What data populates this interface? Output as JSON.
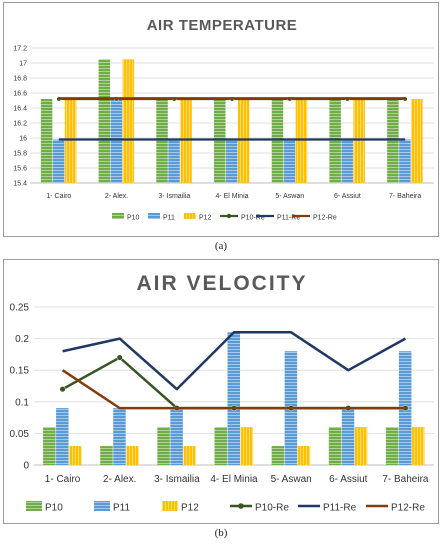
{
  "captions": {
    "a": "(a)",
    "b": "(b)"
  },
  "colors": {
    "P10": "#70ad47",
    "P11": "#5b9bd5",
    "P12": "#ffc000",
    "P10-Re": "#375623",
    "P11-Re": "#1f3864",
    "P12-Re": "#843c0c"
  },
  "chart_data": [
    {
      "type": "bar",
      "title": "AIR TEMPERATURE",
      "xlabel": "",
      "ylabel": "",
      "categories": [
        "1- Cairo",
        "2- Alex.",
        "3- Ismailia",
        "4- El Minia",
        "5- Aswan",
        "6- Assiut",
        "7- Baheira"
      ],
      "ylim": [
        15.4,
        17.2
      ],
      "yticks": [
        "15.4",
        "15.6",
        "15.8",
        "16",
        "16.2",
        "16.4",
        "16.6",
        "16.8",
        "17",
        "17.2"
      ],
      "grid": true,
      "legend": "bottom",
      "series": [
        {
          "name": "P10",
          "kind": "bar",
          "values": [
            16.52,
            17.05,
            16.52,
            16.52,
            16.52,
            16.52,
            16.52
          ]
        },
        {
          "name": "P11",
          "kind": "bar",
          "values": [
            15.98,
            16.52,
            15.98,
            15.98,
            15.98,
            15.98,
            15.98
          ]
        },
        {
          "name": "P12",
          "kind": "bar",
          "values": [
            16.52,
            17.05,
            16.52,
            16.52,
            16.52,
            16.52,
            16.52
          ]
        },
        {
          "name": "P10-Re",
          "kind": "line",
          "marker": true,
          "values": [
            16.52,
            16.52,
            16.52,
            16.52,
            16.52,
            16.52,
            16.52
          ]
        },
        {
          "name": "P11-Re",
          "kind": "line",
          "marker": false,
          "values": [
            15.98,
            15.98,
            15.98,
            15.98,
            15.98,
            15.98,
            15.98
          ]
        },
        {
          "name": "P12-Re",
          "kind": "line",
          "marker": false,
          "values": [
            16.53,
            16.53,
            16.53,
            16.53,
            16.53,
            16.53,
            16.53
          ]
        }
      ]
    },
    {
      "type": "bar",
      "title": "AIR VELOCITY",
      "xlabel": "",
      "ylabel": "",
      "categories": [
        "1- Cairo",
        "2- Alex.",
        "3- Ismailia",
        "4- El Minia",
        "5- Aswan",
        "6- Assiut",
        "7- Baheira"
      ],
      "ylim": [
        0,
        0.25
      ],
      "yticks": [
        "0",
        "0.05",
        "0.1",
        "0.15",
        "0.2",
        "0.25"
      ],
      "grid": true,
      "legend": "bottom",
      "series": [
        {
          "name": "P10",
          "kind": "bar",
          "values": [
            0.06,
            0.03,
            0.06,
            0.06,
            0.03,
            0.06,
            0.06
          ]
        },
        {
          "name": "P11",
          "kind": "bar",
          "values": [
            0.09,
            0.09,
            0.09,
            0.21,
            0.18,
            0.09,
            0.18
          ]
        },
        {
          "name": "P12",
          "kind": "bar",
          "values": [
            0.03,
            0.03,
            0.03,
            0.06,
            0.03,
            0.06,
            0.06
          ]
        },
        {
          "name": "P10-Re",
          "kind": "line",
          "marker": true,
          "values": [
            0.12,
            0.17,
            0.09,
            0.09,
            0.09,
            0.09,
            0.09
          ]
        },
        {
          "name": "P11-Re",
          "kind": "line",
          "marker": false,
          "values": [
            0.18,
            0.2,
            0.12,
            0.21,
            0.21,
            0.15,
            0.2
          ]
        },
        {
          "name": "P12-Re",
          "kind": "line",
          "marker": false,
          "values": [
            0.15,
            0.09,
            0.09,
            0.09,
            0.09,
            0.09,
            0.09
          ]
        }
      ]
    }
  ]
}
